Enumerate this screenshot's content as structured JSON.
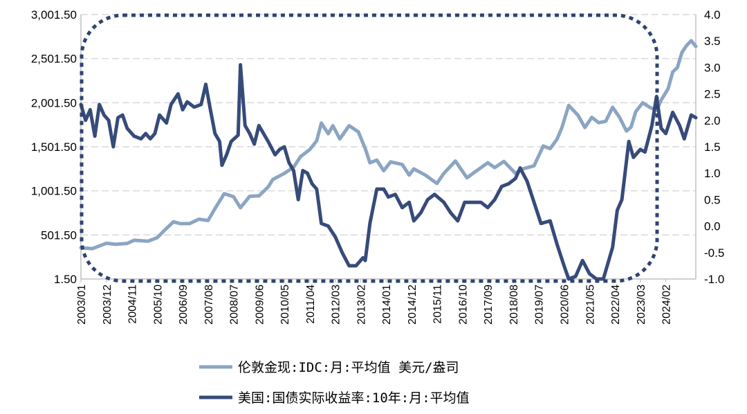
{
  "chart_data": {
    "type": "line",
    "title": "",
    "grid": true,
    "legend_position": "bottom",
    "left_axis": {
      "ylim": [
        1.5,
        3001.5
      ],
      "ticks": [
        "1.50",
        "501.50",
        "1,001.50",
        "1,501.50",
        "2,001.50",
        "2,501.50",
        "3,001.50"
      ]
    },
    "right_axis": {
      "ylim": [
        -1.0,
        4.0
      ],
      "ticks": [
        "-1.0",
        "-0.5",
        "0.0",
        "0.5",
        "1.0",
        "1.5",
        "2.0",
        "2.5",
        "3.0",
        "3.5",
        "4.0"
      ]
    },
    "x_tick_labels": [
      "2003/01",
      "2003/12",
      "2004/11",
      "2005/10",
      "2006/09",
      "2007/08",
      "2008/07",
      "2009/06",
      "2010/05",
      "2011/04",
      "2012/03",
      "2013/02",
      "2014/01",
      "2014/12",
      "2015/11",
      "2016/10",
      "2017/09",
      "2018/08",
      "2019/07",
      "2020/06",
      "2021/05",
      "2022/04",
      "2023/03",
      "2024/02"
    ],
    "colors": {
      "gold": "#8ba5c3",
      "yield": "#374b7a",
      "highlight": "#2f4373",
      "grid": "#d9d9d9"
    },
    "series": [
      {
        "name": "伦敦金现:IDC:月:平均值 美元/盎司",
        "axis": "left",
        "color": "#8ba5c3",
        "points": [
          [
            "2003-01",
            356
          ],
          [
            "2003-06",
            346
          ],
          [
            "2003-12",
            407
          ],
          [
            "2004-04",
            395
          ],
          [
            "2004-09",
            405
          ],
          [
            "2004-12",
            441
          ],
          [
            "2005-06",
            430
          ],
          [
            "2005-10",
            470
          ],
          [
            "2006-01",
            550
          ],
          [
            "2006-05",
            650
          ],
          [
            "2006-08",
            630
          ],
          [
            "2006-12",
            630
          ],
          [
            "2007-04",
            680
          ],
          [
            "2007-08",
            665
          ],
          [
            "2007-11",
            800
          ],
          [
            "2008-03",
            970
          ],
          [
            "2008-07",
            935
          ],
          [
            "2008-10",
            810
          ],
          [
            "2009-02",
            940
          ],
          [
            "2009-06",
            945
          ],
          [
            "2009-10",
            1045
          ],
          [
            "2009-12",
            1130
          ],
          [
            "2010-05",
            1200
          ],
          [
            "2010-09",
            1270
          ],
          [
            "2010-12",
            1390
          ],
          [
            "2011-04",
            1470
          ],
          [
            "2011-07",
            1570
          ],
          [
            "2011-09",
            1770
          ],
          [
            "2011-12",
            1650
          ],
          [
            "2012-02",
            1740
          ],
          [
            "2012-05",
            1590
          ],
          [
            "2012-09",
            1740
          ],
          [
            "2013-01",
            1670
          ],
          [
            "2013-04",
            1480
          ],
          [
            "2013-06",
            1320
          ],
          [
            "2013-09",
            1350
          ],
          [
            "2013-12",
            1230
          ],
          [
            "2014-03",
            1330
          ],
          [
            "2014-08",
            1300
          ],
          [
            "2014-11",
            1180
          ],
          [
            "2015-01",
            1250
          ],
          [
            "2015-06",
            1180
          ],
          [
            "2015-11",
            1085
          ],
          [
            "2016-02",
            1200
          ],
          [
            "2016-07",
            1340
          ],
          [
            "2016-12",
            1150
          ],
          [
            "2017-05",
            1245
          ],
          [
            "2017-09",
            1320
          ],
          [
            "2017-12",
            1265
          ],
          [
            "2018-04",
            1335
          ],
          [
            "2018-09",
            1200
          ],
          [
            "2018-12",
            1250
          ],
          [
            "2019-05",
            1285
          ],
          [
            "2019-09",
            1510
          ],
          [
            "2019-12",
            1480
          ],
          [
            "2020-03",
            1590
          ],
          [
            "2020-05",
            1715
          ],
          [
            "2020-08",
            1970
          ],
          [
            "2020-12",
            1860
          ],
          [
            "2021-03",
            1720
          ],
          [
            "2021-06",
            1835
          ],
          [
            "2021-09",
            1775
          ],
          [
            "2021-12",
            1790
          ],
          [
            "2022-03",
            1950
          ],
          [
            "2022-06",
            1835
          ],
          [
            "2022-09",
            1680
          ],
          [
            "2022-11",
            1725
          ],
          [
            "2023-01",
            1900
          ],
          [
            "2023-04",
            2000
          ],
          [
            "2023-07",
            1950
          ],
          [
            "2023-10",
            1915
          ],
          [
            "2023-12",
            2030
          ],
          [
            "2024-03",
            2160
          ],
          [
            "2024-05",
            2350
          ],
          [
            "2024-07",
            2400
          ],
          [
            "2024-09",
            2570
          ],
          [
            "2024-11",
            2650
          ],
          [
            "2025-01",
            2705
          ],
          [
            "2025-03",
            2640
          ]
        ]
      },
      {
        "name": "美国:国债实际收益率:10年:月:平均值",
        "axis": "right",
        "color": "#374b7a",
        "points": [
          [
            "2003-01",
            2.3
          ],
          [
            "2003-03",
            2.0
          ],
          [
            "2003-05",
            2.2
          ],
          [
            "2003-07",
            1.7
          ],
          [
            "2003-09",
            2.3
          ],
          [
            "2003-11",
            2.1
          ],
          [
            "2004-01",
            2.0
          ],
          [
            "2004-03",
            1.5
          ],
          [
            "2004-05",
            2.05
          ],
          [
            "2004-07",
            2.1
          ],
          [
            "2004-09",
            1.85
          ],
          [
            "2004-12",
            1.7
          ],
          [
            "2005-03",
            1.65
          ],
          [
            "2005-05",
            1.75
          ],
          [
            "2005-07",
            1.65
          ],
          [
            "2005-09",
            1.75
          ],
          [
            "2005-11",
            2.1
          ],
          [
            "2006-02",
            1.95
          ],
          [
            "2006-04",
            2.3
          ],
          [
            "2006-07",
            2.5
          ],
          [
            "2006-09",
            2.2
          ],
          [
            "2006-11",
            2.35
          ],
          [
            "2007-02",
            2.25
          ],
          [
            "2007-05",
            2.3
          ],
          [
            "2007-07",
            2.68
          ],
          [
            "2007-09",
            2.2
          ],
          [
            "2007-11",
            1.75
          ],
          [
            "2008-01",
            1.6
          ],
          [
            "2008-02",
            1.15
          ],
          [
            "2008-04",
            1.35
          ],
          [
            "2008-06",
            1.6
          ],
          [
            "2008-09",
            1.72
          ],
          [
            "2008-10",
            3.05
          ],
          [
            "2008-12",
            1.9
          ],
          [
            "2009-02",
            1.75
          ],
          [
            "2009-04",
            1.55
          ],
          [
            "2009-06",
            1.9
          ],
          [
            "2009-10",
            1.6
          ],
          [
            "2010-01",
            1.35
          ],
          [
            "2010-03",
            1.45
          ],
          [
            "2010-05",
            1.5
          ],
          [
            "2010-07",
            1.2
          ],
          [
            "2010-09",
            1.05
          ],
          [
            "2010-11",
            0.5
          ],
          [
            "2011-01",
            1.05
          ],
          [
            "2011-03",
            1.0
          ],
          [
            "2011-05",
            0.8
          ],
          [
            "2011-07",
            0.7
          ],
          [
            "2011-09",
            0.05
          ],
          [
            "2011-12",
            0.0
          ],
          [
            "2012-03",
            -0.2
          ],
          [
            "2012-06",
            -0.5
          ],
          [
            "2012-09",
            -0.75
          ],
          [
            "2012-12",
            -0.75
          ],
          [
            "2013-03",
            -0.6
          ],
          [
            "2013-04",
            -0.65
          ],
          [
            "2013-06",
            0.05
          ],
          [
            "2013-09",
            0.7
          ],
          [
            "2013-12",
            0.7
          ],
          [
            "2014-02",
            0.55
          ],
          [
            "2014-05",
            0.6
          ],
          [
            "2014-08",
            0.35
          ],
          [
            "2014-11",
            0.45
          ],
          [
            "2015-01",
            0.1
          ],
          [
            "2015-04",
            0.25
          ],
          [
            "2015-07",
            0.5
          ],
          [
            "2015-10",
            0.6
          ],
          [
            "2016-02",
            0.45
          ],
          [
            "2016-05",
            0.25
          ],
          [
            "2016-08",
            0.1
          ],
          [
            "2016-11",
            0.45
          ],
          [
            "2017-02",
            0.45
          ],
          [
            "2017-06",
            0.45
          ],
          [
            "2017-09",
            0.35
          ],
          [
            "2017-12",
            0.5
          ],
          [
            "2018-03",
            0.75
          ],
          [
            "2018-06",
            0.8
          ],
          [
            "2018-09",
            0.9
          ],
          [
            "2018-11",
            1.1
          ],
          [
            "2019-02",
            0.85
          ],
          [
            "2019-05",
            0.45
          ],
          [
            "2019-08",
            0.05
          ],
          [
            "2019-12",
            0.1
          ],
          [
            "2020-03",
            -0.35
          ],
          [
            "2020-06",
            -0.75
          ],
          [
            "2020-08",
            -1.05
          ],
          [
            "2020-11",
            -0.95
          ],
          [
            "2021-02",
            -0.65
          ],
          [
            "2021-05",
            -0.9
          ],
          [
            "2021-08",
            -1.05
          ],
          [
            "2021-11",
            -1.05
          ],
          [
            "2022-01",
            -0.7
          ],
          [
            "2022-03",
            -0.4
          ],
          [
            "2022-05",
            0.3
          ],
          [
            "2022-07",
            0.5
          ],
          [
            "2022-10",
            1.6
          ],
          [
            "2022-12",
            1.3
          ],
          [
            "2023-03",
            1.45
          ],
          [
            "2023-05",
            1.4
          ],
          [
            "2023-08",
            1.9
          ],
          [
            "2023-10",
            2.45
          ],
          [
            "2023-12",
            1.85
          ],
          [
            "2024-02",
            1.75
          ],
          [
            "2024-05",
            2.15
          ],
          [
            "2024-08",
            1.9
          ],
          [
            "2024-10",
            1.65
          ],
          [
            "2025-01",
            2.1
          ],
          [
            "2025-03",
            2.05
          ]
        ]
      }
    ]
  }
}
